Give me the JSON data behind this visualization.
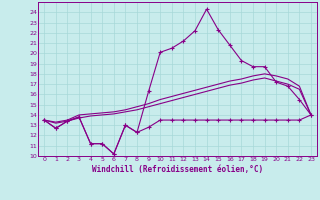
{
  "xlabel": "Windchill (Refroidissement éolien,°C)",
  "background_color": "#c8ecec",
  "grid_color": "#a8d8d8",
  "line_color": "#880088",
  "xlim": [
    -0.5,
    23.5
  ],
  "ylim": [
    10,
    25
  ],
  "xticks": [
    0,
    1,
    2,
    3,
    4,
    5,
    6,
    7,
    8,
    9,
    10,
    11,
    12,
    13,
    14,
    15,
    16,
    17,
    18,
    19,
    20,
    21,
    22,
    23
  ],
  "yticks": [
    10,
    11,
    12,
    13,
    14,
    15,
    16,
    17,
    18,
    19,
    20,
    21,
    22,
    23,
    24
  ],
  "line1_x": [
    0,
    1,
    2,
    3,
    4,
    5,
    6,
    7,
    8,
    9,
    10,
    11,
    12,
    13,
    14,
    15,
    16,
    17,
    18,
    19,
    20,
    21,
    22,
    23
  ],
  "line1_y": [
    13.5,
    12.7,
    13.4,
    13.8,
    11.2,
    11.2,
    10.2,
    13.0,
    12.3,
    12.8,
    13.5,
    13.5,
    13.5,
    13.5,
    13.5,
    13.5,
    13.5,
    13.5,
    13.5,
    13.5,
    13.5,
    13.5,
    13.5,
    14.0
  ],
  "line2_x": [
    0,
    1,
    2,
    3,
    4,
    5,
    6,
    7,
    8,
    9,
    10,
    11,
    12,
    13,
    14,
    15,
    16,
    17,
    18,
    19,
    20,
    21,
    22,
    23
  ],
  "line2_y": [
    13.5,
    12.7,
    13.4,
    13.8,
    11.2,
    11.2,
    10.2,
    13.0,
    12.3,
    16.3,
    20.1,
    20.5,
    21.2,
    22.2,
    24.3,
    22.3,
    20.8,
    19.3,
    18.7,
    18.7,
    17.2,
    16.8,
    15.5,
    14.0
  ],
  "line3_x": [
    0,
    1,
    2,
    3,
    4,
    5,
    6,
    7,
    8,
    9,
    10,
    11,
    12,
    13,
    14,
    15,
    16,
    17,
    18,
    19,
    20,
    21,
    22,
    23
  ],
  "line3_y": [
    13.5,
    13.3,
    13.5,
    14.0,
    14.1,
    14.2,
    14.3,
    14.5,
    14.8,
    15.1,
    15.5,
    15.8,
    16.1,
    16.4,
    16.7,
    17.0,
    17.3,
    17.5,
    17.8,
    18.0,
    17.8,
    17.5,
    16.8,
    14.0
  ],
  "line4_x": [
    0,
    1,
    2,
    3,
    4,
    5,
    6,
    7,
    8,
    9,
    10,
    11,
    12,
    13,
    14,
    15,
    16,
    17,
    18,
    19,
    20,
    21,
    22,
    23
  ],
  "line4_y": [
    13.5,
    13.2,
    13.4,
    13.7,
    13.9,
    14.0,
    14.1,
    14.3,
    14.5,
    14.8,
    15.1,
    15.4,
    15.7,
    16.0,
    16.3,
    16.6,
    16.9,
    17.1,
    17.4,
    17.6,
    17.3,
    17.0,
    16.5,
    14.0
  ],
  "fontsize_ticks": 4.5,
  "fontsize_xlabel": 5.5
}
